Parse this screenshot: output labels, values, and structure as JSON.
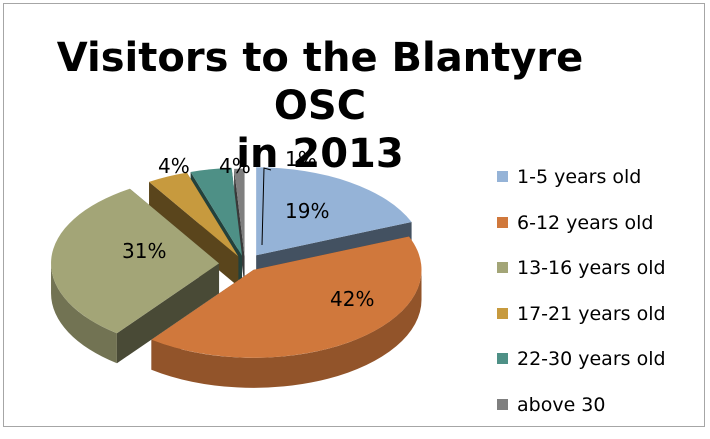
{
  "chart_data": {
    "type": "pie",
    "title": "Visitors to the Blantyre OSC in 2013",
    "title_lines": [
      "Visitors to the Blantyre OSC",
      "in 2013"
    ],
    "style": "3d-exploded",
    "categories": [
      "1-5 years old",
      "6-12 years old",
      "13-16 years old",
      "17-21 years old",
      "22-30 years old",
      "above 30"
    ],
    "values": [
      19,
      42,
      31,
      4,
      4,
      1
    ],
    "data_labels": [
      "19%",
      "42%",
      "31%",
      "4%",
      "4%",
      "1%"
    ],
    "colors": [
      "#95b3d7",
      "#d0783c",
      "#a3a577",
      "#c79a3e",
      "#4e9086",
      "#7f7f7f"
    ],
    "legend_position": "right"
  }
}
